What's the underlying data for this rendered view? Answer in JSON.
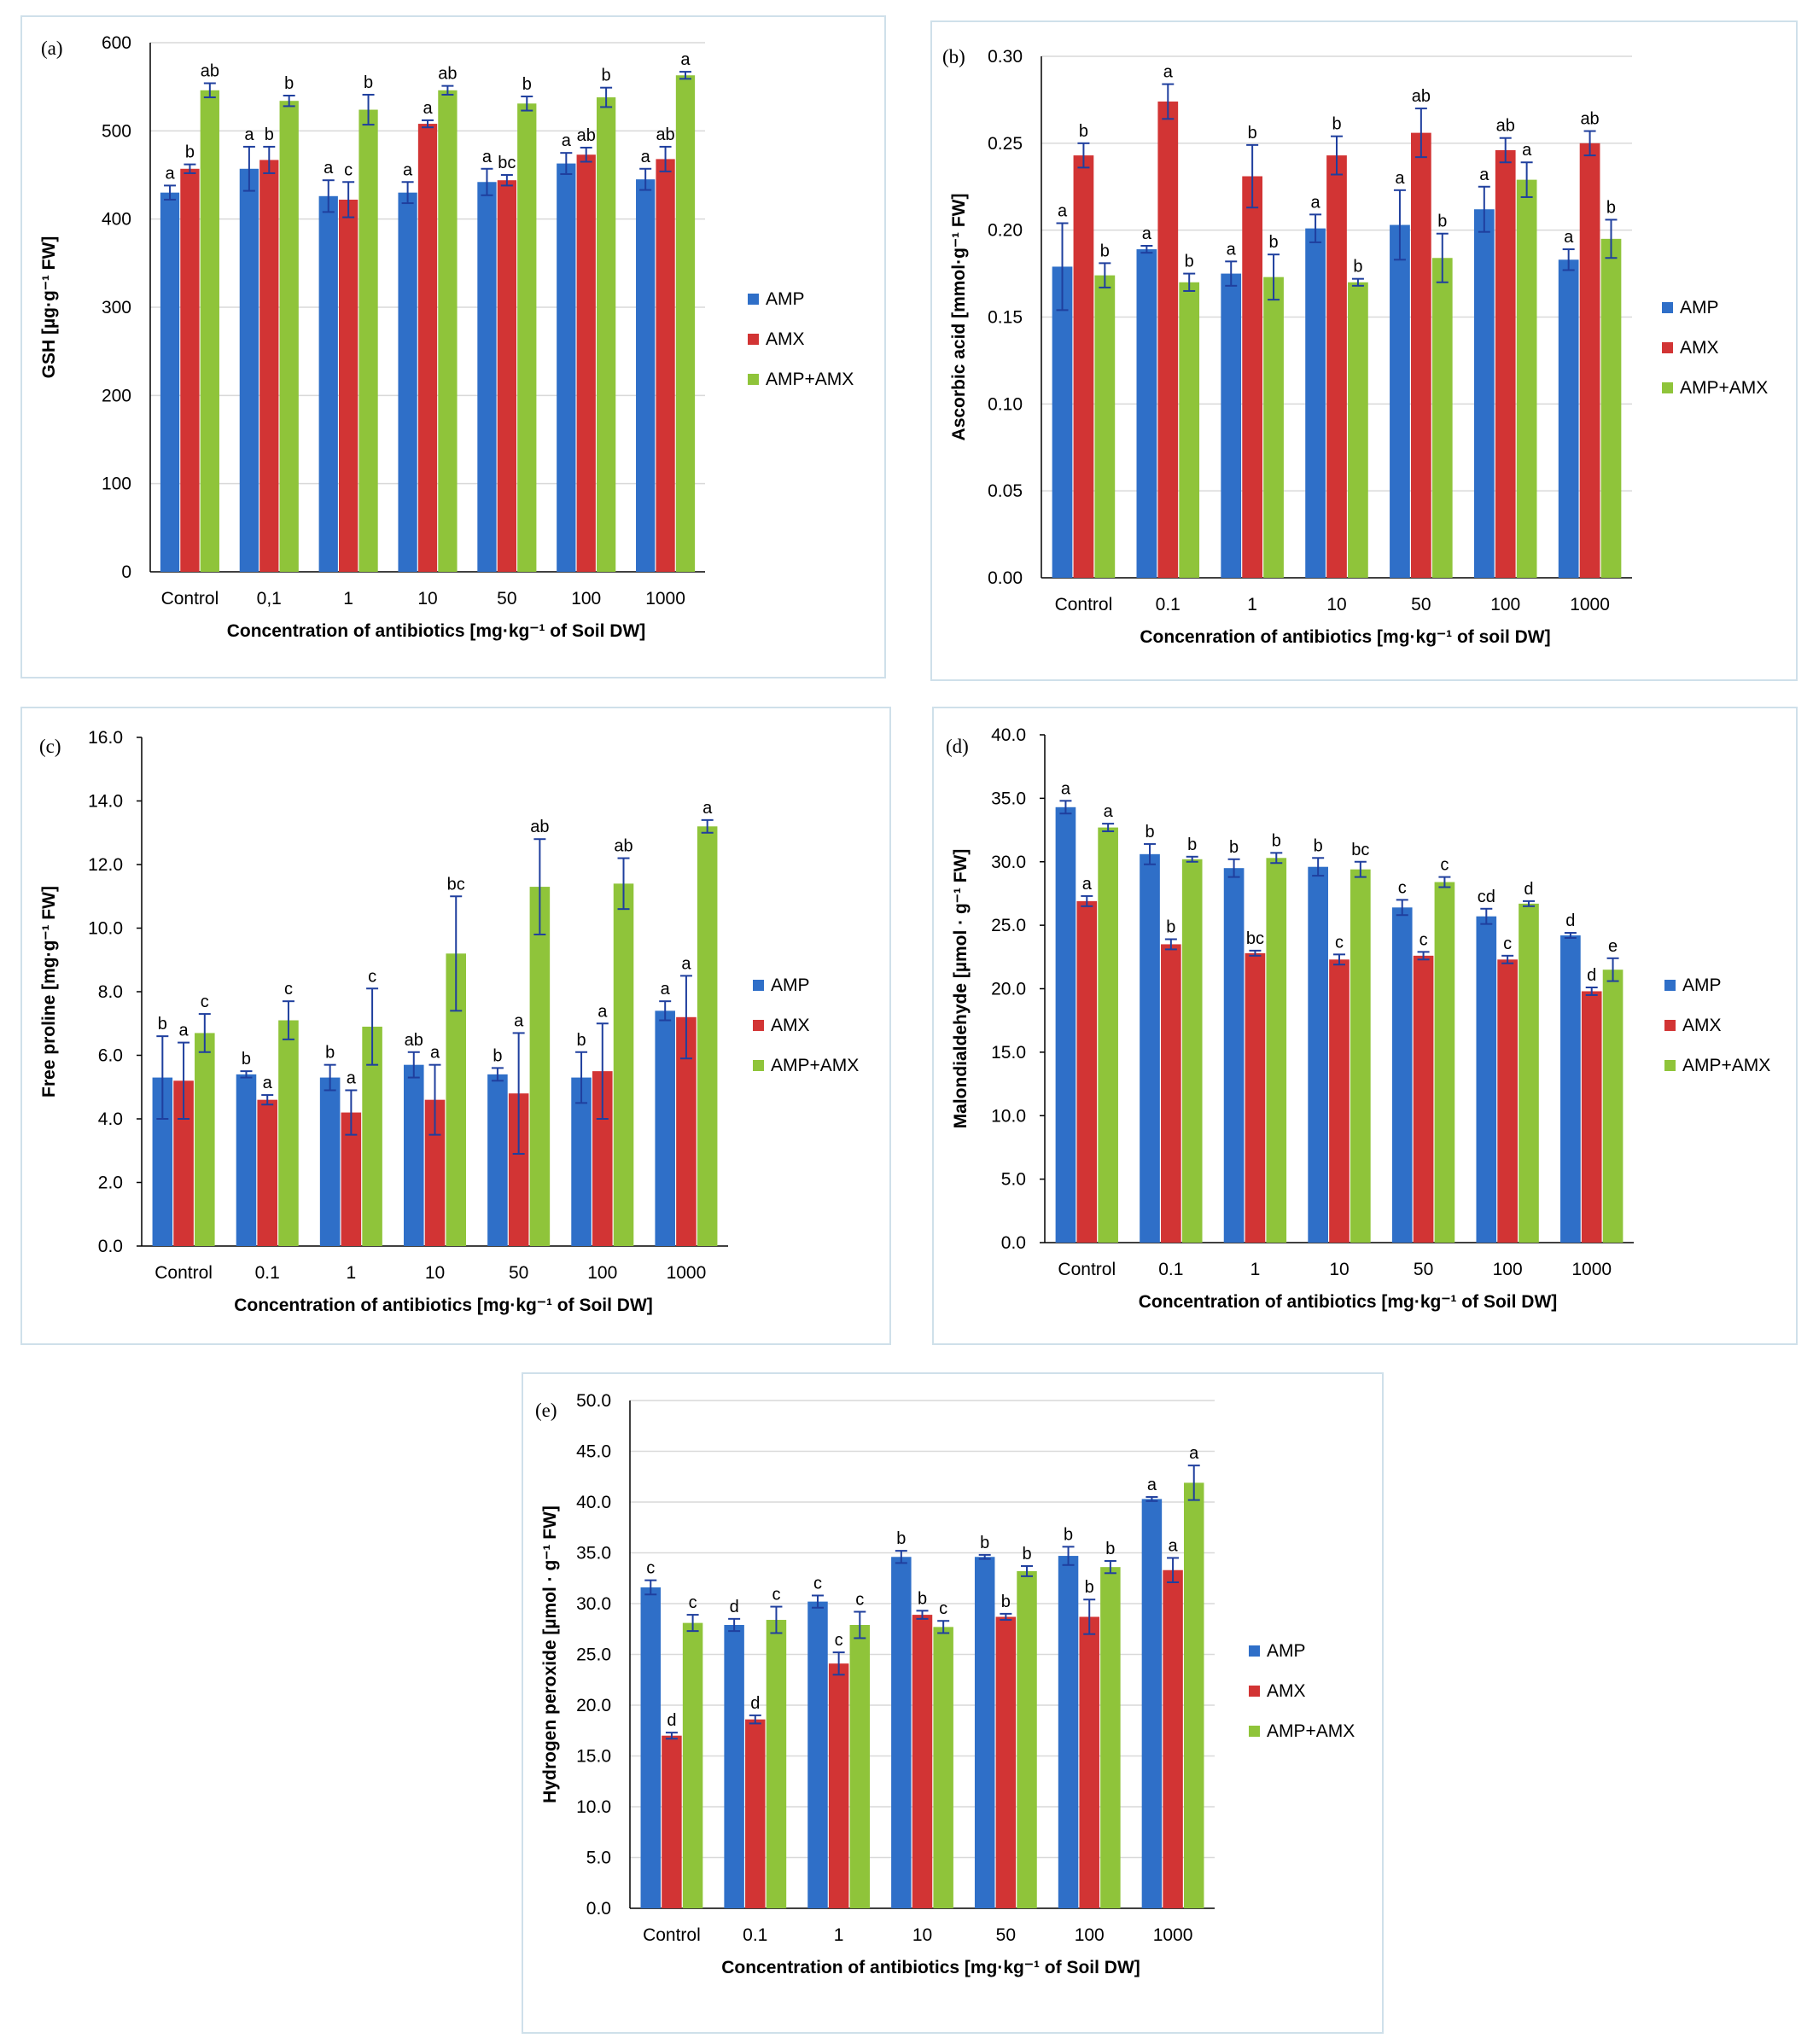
{
  "legend": {
    "series_names": [
      "AMP",
      "AMX",
      "AMP+AMX"
    ]
  },
  "colors": {
    "AMP": "#2f6fc8",
    "AMX": "#d23434",
    "AMP+AMX": "#8fc43a",
    "error_bar": "#1f3f9e",
    "axis": "#000000",
    "grid": "#d9d9d9",
    "frame": "#cfe0ea"
  },
  "chart_data": [
    {
      "id": "a",
      "panel_label": "(a)",
      "type": "bar",
      "categories": [
        "Control",
        "0,1",
        "1",
        "10",
        "50",
        "100",
        "1000"
      ],
      "xlabel": "Concentration of antibiotics [mg·kg⁻¹ of Soil DW]",
      "ylabel": "GSH [µg·g⁻¹ FW]",
      "ylim": [
        0,
        600
      ],
      "yticks": [
        0,
        100,
        200,
        300,
        400,
        500,
        600
      ],
      "ytick_labels": [
        "0",
        "100",
        "200",
        "300",
        "400",
        "500",
        "600"
      ],
      "grid": true,
      "legend_position": "right",
      "series": [
        {
          "name": "AMP",
          "values": [
            430,
            457,
            426,
            430,
            442,
            463,
            445
          ],
          "errors": [
            8,
            25,
            18,
            12,
            15,
            12,
            12
          ],
          "letters": [
            "a",
            "a",
            "a",
            "a",
            "a",
            "a",
            "a"
          ]
        },
        {
          "name": "AMX",
          "values": [
            457,
            467,
            422,
            508,
            444,
            473,
            468
          ],
          "errors": [
            5,
            15,
            20,
            4,
            6,
            8,
            14
          ],
          "letters": [
            "b",
            "b",
            "c",
            "a",
            "bc",
            "ab",
            "ab"
          ]
        },
        {
          "name": "AMP+AMX",
          "values": [
            546,
            534,
            524,
            546,
            531,
            538,
            563
          ],
          "errors": [
            8,
            6,
            17,
            5,
            8,
            11,
            4
          ],
          "letters": [
            "ab",
            "b",
            "b",
            "ab",
            "b",
            "b",
            "a"
          ]
        }
      ]
    },
    {
      "id": "b",
      "panel_label": "(b)",
      "type": "bar",
      "categories": [
        "Control",
        "0.1",
        "1",
        "10",
        "50",
        "100",
        "1000"
      ],
      "xlabel": "Concenration of antibiotics [mg·kg⁻¹ of soil DW]",
      "ylabel": "Ascorbic acid [mmol·g⁻¹ FW]",
      "ylim": [
        0,
        0.3
      ],
      "yticks": [
        0,
        0.05,
        0.1,
        0.15,
        0.2,
        0.25,
        0.3
      ],
      "ytick_labels": [
        "0.00",
        "0.05",
        "0.10",
        "0.15",
        "0.20",
        "0.25",
        "0.30"
      ],
      "grid": true,
      "legend_position": "right",
      "series": [
        {
          "name": "AMP",
          "values": [
            0.179,
            0.189,
            0.175,
            0.201,
            0.203,
            0.212,
            0.183
          ],
          "errors": [
            0.025,
            0.002,
            0.007,
            0.008,
            0.02,
            0.013,
            0.006
          ],
          "letters": [
            "a",
            "a",
            "a",
            "a",
            "a",
            "a",
            "a"
          ]
        },
        {
          "name": "AMX",
          "values": [
            0.243,
            0.274,
            0.231,
            0.243,
            0.256,
            0.246,
            0.25
          ],
          "errors": [
            0.007,
            0.01,
            0.018,
            0.011,
            0.014,
            0.007,
            0.007
          ],
          "letters": [
            "b",
            "a",
            "b",
            "b",
            "ab",
            "ab",
            "ab"
          ]
        },
        {
          "name": "AMP+AMX",
          "values": [
            0.174,
            0.17,
            0.173,
            0.17,
            0.184,
            0.229,
            0.195
          ],
          "errors": [
            0.007,
            0.005,
            0.013,
            0.002,
            0.014,
            0.01,
            0.011
          ],
          "letters": [
            "b",
            "b",
            "b",
            "b",
            "b",
            "a",
            "b"
          ]
        }
      ]
    },
    {
      "id": "c",
      "panel_label": "(c)",
      "type": "bar",
      "categories": [
        "Control",
        "0.1",
        "1",
        "10",
        "50",
        "100",
        "1000"
      ],
      "xlabel": "Concentration of antibiotics [mg·kg⁻¹ of Soil DW]",
      "ylabel": "Free proline [mg·g⁻¹ FW]",
      "ylim": [
        0,
        16
      ],
      "yticks": [
        0,
        2,
        4,
        6,
        8,
        10,
        12,
        14,
        16
      ],
      "ytick_labels": [
        "0.0",
        "2.0",
        "4.0",
        "6.0",
        "8.0",
        "10.0",
        "12.0",
        "14.0",
        "16.0"
      ],
      "grid": false,
      "legend_position": "right",
      "series": [
        {
          "name": "AMP",
          "values": [
            5.3,
            5.4,
            5.3,
            5.7,
            5.4,
            5.3,
            7.4
          ],
          "errors": [
            1.3,
            0.1,
            0.4,
            0.4,
            0.2,
            0.8,
            0.3
          ],
          "letters": [
            "b",
            "b",
            "b",
            "ab",
            "b",
            "b",
            "a"
          ]
        },
        {
          "name": "AMX",
          "values": [
            5.2,
            4.6,
            4.2,
            4.6,
            4.8,
            5.5,
            7.2
          ],
          "errors": [
            1.2,
            0.15,
            0.7,
            1.1,
            1.9,
            1.5,
            1.3
          ],
          "letters": [
            "a",
            "a",
            "a",
            "a",
            "a",
            "a",
            "a"
          ]
        },
        {
          "name": "AMP+AMX",
          "values": [
            6.7,
            7.1,
            6.9,
            9.2,
            11.3,
            11.4,
            13.2
          ],
          "errors": [
            0.6,
            0.6,
            1.2,
            1.8,
            1.5,
            0.8,
            0.2
          ],
          "letters": [
            "c",
            "c",
            "c",
            "bc",
            "ab",
            "ab",
            "a"
          ]
        }
      ]
    },
    {
      "id": "d",
      "panel_label": "(d)",
      "type": "bar",
      "categories": [
        "Control",
        "0.1",
        "1",
        "10",
        "50",
        "100",
        "1000"
      ],
      "xlabel": "Concentration of antibiotics [mg·kg⁻¹ of Soil DW]",
      "ylabel": "Malondialdehyde [µmol · g⁻¹ FW]",
      "ylim": [
        0,
        40
      ],
      "yticks": [
        0,
        5,
        10,
        15,
        20,
        25,
        30,
        35,
        40
      ],
      "ytick_labels": [
        "0.0",
        "5.0",
        "10.0",
        "15.0",
        "20.0",
        "25.0",
        "30.0",
        "35.0",
        "40.0"
      ],
      "grid": false,
      "legend_position": "right",
      "series": [
        {
          "name": "AMP",
          "values": [
            34.3,
            30.6,
            29.5,
            29.6,
            26.4,
            25.7,
            24.2
          ],
          "errors": [
            0.5,
            0.8,
            0.7,
            0.7,
            0.6,
            0.6,
            0.2
          ],
          "letters": [
            "a",
            "b",
            "b",
            "b",
            "c",
            "cd",
            "d"
          ]
        },
        {
          "name": "AMX",
          "values": [
            26.9,
            23.5,
            22.8,
            22.3,
            22.6,
            22.3,
            19.8
          ],
          "errors": [
            0.4,
            0.4,
            0.2,
            0.4,
            0.3,
            0.3,
            0.3
          ],
          "letters": [
            "a",
            "b",
            "bc",
            "c",
            "c",
            "c",
            "d"
          ]
        },
        {
          "name": "AMP+AMX",
          "values": [
            32.7,
            30.2,
            30.3,
            29.4,
            28.4,
            26.7,
            21.5
          ],
          "errors": [
            0.3,
            0.2,
            0.4,
            0.6,
            0.4,
            0.2,
            0.9
          ],
          "letters": [
            "a",
            "b",
            "b",
            "bc",
            "c",
            "d",
            "e"
          ]
        }
      ]
    },
    {
      "id": "e",
      "panel_label": "(e)",
      "type": "bar",
      "categories": [
        "Control",
        "0.1",
        "1",
        "10",
        "50",
        "100",
        "1000"
      ],
      "xlabel": "Concentration of antibiotics [mg·kg⁻¹ of Soil DW]",
      "ylabel": "Hydrogen peroxide [µmol · g⁻¹ FW]",
      "ylim": [
        0,
        50
      ],
      "yticks": [
        0,
        5,
        10,
        15,
        20,
        25,
        30,
        35,
        40,
        45,
        50
      ],
      "ytick_labels": [
        "0.0",
        "5.0",
        "10.0",
        "15.0",
        "20.0",
        "25.0",
        "30.0",
        "35.0",
        "40.0",
        "45.0",
        "50.0"
      ],
      "grid": true,
      "legend_position": "right",
      "series": [
        {
          "name": "AMP",
          "values": [
            31.6,
            27.9,
            30.2,
            34.6,
            34.6,
            34.7,
            40.3
          ],
          "errors": [
            0.7,
            0.6,
            0.6,
            0.6,
            0.2,
            0.9,
            0.2
          ],
          "letters": [
            "c",
            "d",
            "c",
            "b",
            "b",
            "b",
            "a"
          ]
        },
        {
          "name": "AMX",
          "values": [
            17.0,
            18.6,
            24.1,
            28.9,
            28.7,
            28.7,
            33.3
          ],
          "errors": [
            0.3,
            0.4,
            1.1,
            0.4,
            0.3,
            1.7,
            1.2
          ],
          "letters": [
            "d",
            "d",
            "c",
            "b",
            "b",
            "b",
            "a"
          ]
        },
        {
          "name": "AMP+AMX",
          "values": [
            28.1,
            28.4,
            27.9,
            27.7,
            33.2,
            33.6,
            41.9
          ],
          "errors": [
            0.8,
            1.3,
            1.3,
            0.6,
            0.5,
            0.6,
            1.7
          ],
          "letters": [
            "c",
            "c",
            "c",
            "c",
            "b",
            "b",
            "a"
          ]
        }
      ]
    }
  ]
}
